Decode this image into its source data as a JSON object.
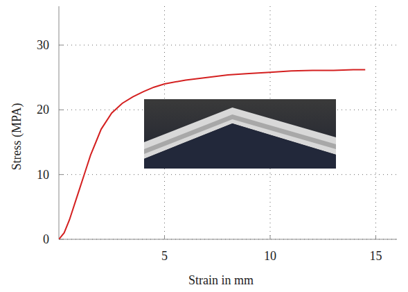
{
  "chart_data": {
    "type": "line",
    "xlabel": "Strain in mm",
    "ylabel": "Stress (MPA)",
    "x": [
      0,
      0.25,
      0.5,
      0.75,
      1,
      1.25,
      1.5,
      1.75,
      2,
      2.5,
      3,
      3.5,
      4,
      4.5,
      5,
      6,
      7,
      8,
      9,
      10,
      11,
      12,
      13,
      14,
      14.5
    ],
    "values": [
      0,
      1,
      3,
      5.5,
      8,
      10.5,
      13,
      15,
      17,
      19.5,
      21,
      22,
      22.8,
      23.5,
      24,
      24.6,
      25,
      25.4,
      25.6,
      25.8,
      26,
      26.1,
      26.1,
      26.2,
      26.2
    ],
    "color": "#d42020",
    "xlim": [
      0,
      16
    ],
    "ylim": [
      0,
      36
    ],
    "xticks": [
      5,
      10,
      15
    ],
    "yticks": [
      0,
      10,
      20,
      30
    ],
    "grid": true
  }
}
